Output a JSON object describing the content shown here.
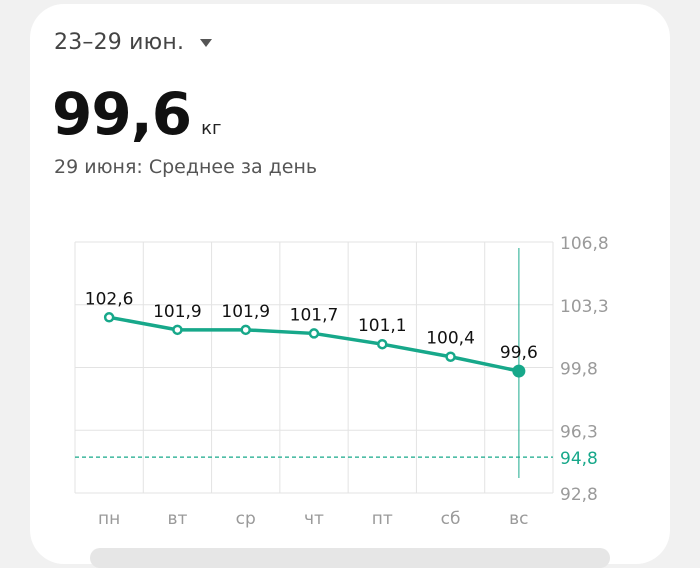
{
  "header": {
    "range_label": "23–29 июн.",
    "caret_icon": "caret-down-icon"
  },
  "summary": {
    "value": "99,6",
    "unit": "кг",
    "subtitle": "29 июня: Среднее за день"
  },
  "colors": {
    "accent": "#17a88a",
    "grid": "#e3e3e3",
    "axis_text": "#9a9a9a"
  },
  "chart_data": {
    "type": "line",
    "categories": [
      "пн",
      "вт",
      "ср",
      "чт",
      "пт",
      "сб",
      "вс"
    ],
    "series": [
      {
        "values": [
          102.6,
          101.9,
          101.9,
          101.7,
          101.1,
          100.4,
          99.6
        ],
        "labels": [
          "102,6",
          "101,9",
          "101,9",
          "101,7",
          "101,1",
          "100,4",
          "99,6"
        ]
      }
    ],
    "y_ticks": [
      106.8,
      103.3,
      99.8,
      96.3,
      92.8
    ],
    "y_tick_labels": [
      "106,8",
      "103,3",
      "99,8",
      "96,3",
      "92,8"
    ],
    "ylim": [
      92.8,
      106.8
    ],
    "target": {
      "value": 94.8,
      "label": "94,8"
    },
    "selected_index": 6,
    "grid": true
  }
}
